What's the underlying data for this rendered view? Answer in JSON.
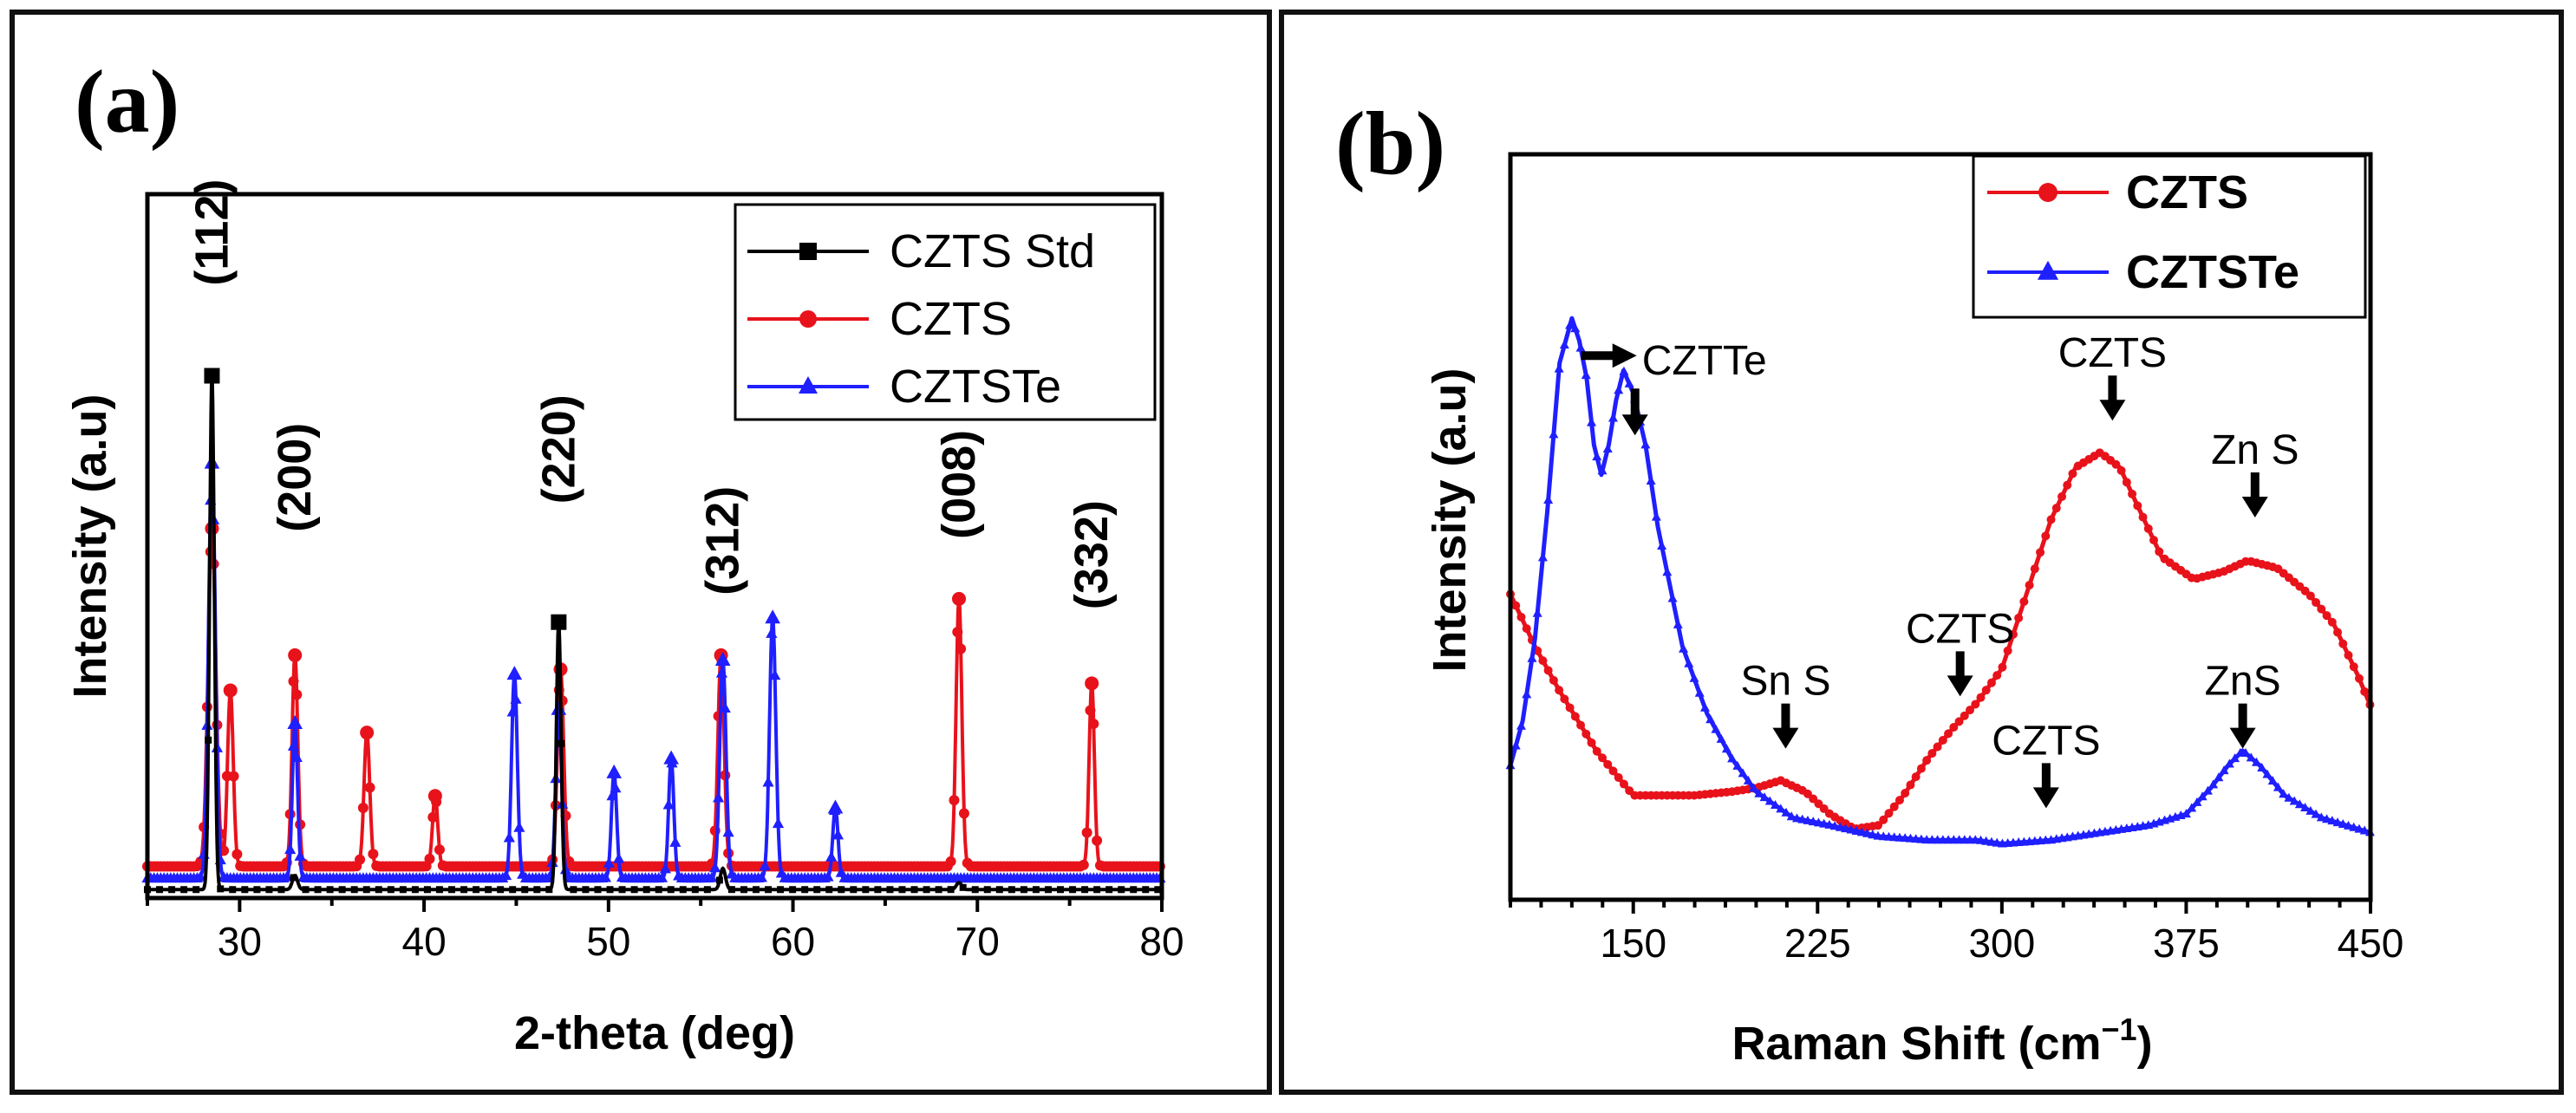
{
  "chart_data": [
    {
      "panel_label": "(a)",
      "type": "line",
      "title": "",
      "xlabel": "2-theta (deg)",
      "ylabel": "Intensity (a.u)",
      "xlim": [
        25,
        80
      ],
      "ylim": [
        0,
        1
      ],
      "xticks": [
        30,
        40,
        50,
        60,
        70,
        80
      ],
      "legend_position": "top-right",
      "series": [
        {
          "name": "CZTS Std",
          "color": "#000000",
          "marker": "square",
          "baseline": 0.012,
          "peaks": [
            [
              28.5,
              0.73,
              0.18
            ],
            [
              33.0,
              0.02,
              0.2
            ],
            [
              47.3,
              0.38,
              0.18
            ],
            [
              56.2,
              0.03,
              0.2
            ],
            [
              69.0,
              0.01,
              0.2
            ]
          ]
        },
        {
          "name": "CZTS",
          "color": "#e8121b",
          "marker": "circle",
          "baseline": 0.045,
          "peaks": [
            [
              28.5,
              0.48,
              0.3
            ],
            [
              29.5,
              0.25,
              0.22
            ],
            [
              33.0,
              0.3,
              0.22
            ],
            [
              36.9,
              0.19,
              0.22
            ],
            [
              40.6,
              0.1,
              0.2
            ],
            [
              47.4,
              0.28,
              0.24
            ],
            [
              56.1,
              0.3,
              0.24
            ],
            [
              69.0,
              0.38,
              0.22
            ],
            [
              76.2,
              0.26,
              0.2
            ]
          ]
        },
        {
          "name": "CZTSTe",
          "color": "#1f1fff",
          "marker": "triangle",
          "baseline": 0.028,
          "peaks": [
            [
              28.5,
              0.59,
              0.26
            ],
            [
              33.0,
              0.22,
              0.2
            ],
            [
              44.9,
              0.29,
              0.22
            ],
            [
              47.3,
              0.24,
              0.22
            ],
            [
              50.3,
              0.15,
              0.2
            ],
            [
              53.4,
              0.17,
              0.2
            ],
            [
              56.2,
              0.31,
              0.24
            ],
            [
              58.9,
              0.37,
              0.24
            ],
            [
              62.3,
              0.1,
              0.2
            ]
          ]
        }
      ],
      "annotations": [
        {
          "text": "(112)",
          "x": 28.5,
          "y": 0.87
        },
        {
          "text": "(200)",
          "x": 33.0,
          "y": 0.52
        },
        {
          "text": "(220)",
          "x": 47.3,
          "y": 0.56
        },
        {
          "text": "(312)",
          "x": 56.2,
          "y": 0.43
        },
        {
          "text": "(008)",
          "x": 69.0,
          "y": 0.51
        },
        {
          "text": "(332)",
          "x": 76.2,
          "y": 0.41
        }
      ]
    },
    {
      "panel_label": "(b)",
      "type": "line",
      "title": "",
      "xlabel": "Raman Shift (cm",
      "xlabel_superscript": "−1",
      "xlabel_suffix": ")",
      "ylabel": "Intensity (a.u)",
      "xlim": [
        100,
        450
      ],
      "ylim": [
        0,
        1
      ],
      "xticks": [
        150,
        225,
        300,
        375,
        450
      ],
      "legend_position": "top-right",
      "series": [
        {
          "name": "CZTS",
          "color": "#e8121b",
          "marker": "circle",
          "points": [
            [
              100,
              0.41
            ],
            [
              110,
              0.34
            ],
            [
              120,
              0.28
            ],
            [
              135,
              0.2
            ],
            [
              150,
              0.14
            ],
            [
              160,
              0.14
            ],
            [
              175,
              0.14
            ],
            [
              190,
              0.145
            ],
            [
              200,
              0.15
            ],
            [
              210,
              0.16
            ],
            [
              220,
              0.145
            ],
            [
              230,
              0.115
            ],
            [
              240,
              0.095
            ],
            [
              250,
              0.1
            ],
            [
              260,
              0.14
            ],
            [
              270,
              0.19
            ],
            [
              280,
              0.23
            ],
            [
              290,
              0.265
            ],
            [
              300,
              0.31
            ],
            [
              310,
              0.41
            ],
            [
              320,
              0.51
            ],
            [
              330,
              0.58
            ],
            [
              340,
              0.6
            ],
            [
              348,
              0.58
            ],
            [
              355,
              0.53
            ],
            [
              365,
              0.46
            ],
            [
              378,
              0.43
            ],
            [
              390,
              0.44
            ],
            [
              400,
              0.455
            ],
            [
              412,
              0.445
            ],
            [
              425,
              0.41
            ],
            [
              435,
              0.37
            ],
            [
              445,
              0.3
            ],
            [
              450,
              0.26
            ]
          ]
        },
        {
          "name": "CZTSTe",
          "color": "#1f1fff",
          "marker": "triangle",
          "points": [
            [
              100,
              0.18
            ],
            [
              105,
              0.24
            ],
            [
              110,
              0.35
            ],
            [
              115,
              0.52
            ],
            [
              120,
              0.72
            ],
            [
              125,
              0.78
            ],
            [
              128,
              0.75
            ],
            [
              131,
              0.7
            ],
            [
              134,
              0.61
            ],
            [
              137,
              0.57
            ],
            [
              140,
              0.61
            ],
            [
              143,
              0.67
            ],
            [
              146,
              0.71
            ],
            [
              150,
              0.68
            ],
            [
              155,
              0.61
            ],
            [
              160,
              0.5
            ],
            [
              170,
              0.34
            ],
            [
              180,
              0.25
            ],
            [
              190,
              0.19
            ],
            [
              200,
              0.145
            ],
            [
              215,
              0.11
            ],
            [
              230,
              0.1
            ],
            [
              250,
              0.085
            ],
            [
              270,
              0.08
            ],
            [
              290,
              0.08
            ],
            [
              300,
              0.075
            ],
            [
              320,
              0.08
            ],
            [
              340,
              0.09
            ],
            [
              360,
              0.1
            ],
            [
              375,
              0.115
            ],
            [
              385,
              0.15
            ],
            [
              392,
              0.18
            ],
            [
              398,
              0.2
            ],
            [
              405,
              0.18
            ],
            [
              415,
              0.14
            ],
            [
              430,
              0.11
            ],
            [
              450,
              0.09
            ]
          ]
        }
      ],
      "annotations": [
        {
          "text": "CZTTe",
          "x": 150,
          "y": 0.73
        },
        {
          "text": "CZTS",
          "x": 345,
          "y": 0.68
        },
        {
          "text": "Zn S",
          "x": 403,
          "y": 0.55
        },
        {
          "text": "Sn S",
          "x": 212,
          "y": 0.24
        },
        {
          "text": "CZTS",
          "x": 283,
          "y": 0.31
        },
        {
          "text": "CZTS",
          "x": 318,
          "y": 0.16
        },
        {
          "text": "ZnS",
          "x": 398,
          "y": 0.24
        }
      ]
    }
  ]
}
